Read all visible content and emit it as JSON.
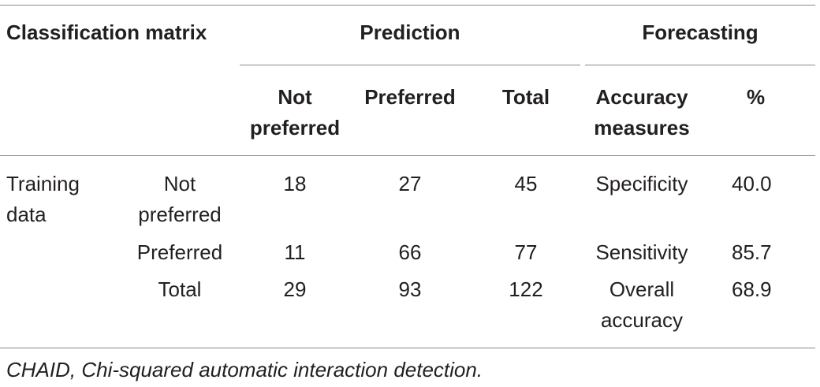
{
  "table": {
    "header": {
      "classification_matrix": "Classification matrix",
      "prediction": "Prediction",
      "forecasting": "Forecasting",
      "col_not_preferred": [
        "Not",
        "preferred"
      ],
      "col_preferred": "Preferred",
      "col_total": "Total",
      "col_accuracy_measures": [
        "Accuracy",
        "measures"
      ],
      "col_percent": "%"
    },
    "rows": [
      {
        "group_label": [
          "Training",
          "data"
        ],
        "label": [
          "Not",
          "preferred"
        ],
        "not_preferred": "18",
        "preferred": "27",
        "total": "45",
        "measure": [
          "Specificity"
        ],
        "percent": "40.0"
      },
      {
        "label": [
          "Preferred"
        ],
        "not_preferred": "11",
        "preferred": "66",
        "total": "77",
        "measure": [
          "Sensitivity"
        ],
        "percent": "85.7"
      },
      {
        "label": [
          "Total"
        ],
        "not_preferred": "29",
        "preferred": "93",
        "total": "122",
        "measure": [
          "Overall",
          "accuracy"
        ],
        "percent": "68.9"
      }
    ],
    "footnote": "CHAID, Chi-squared automatic interaction detection."
  }
}
